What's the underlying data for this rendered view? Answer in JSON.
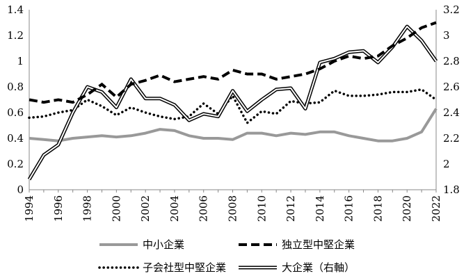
{
  "chart_data": {
    "type": "line",
    "x": [
      1994,
      1995,
      1996,
      1997,
      1998,
      1999,
      2000,
      2001,
      2002,
      2003,
      2004,
      2005,
      2006,
      2007,
      2008,
      2009,
      2010,
      2011,
      2012,
      2013,
      2014,
      2015,
      2016,
      2017,
      2018,
      2019,
      2020,
      2021,
      2022
    ],
    "x_tick_labels": [
      "1994",
      "1996",
      "1998",
      "2000",
      "2002",
      "2004",
      "2006",
      "2008",
      "2010",
      "2012",
      "2014",
      "2016",
      "2018",
      "2020",
      "2022"
    ],
    "y_left": {
      "range": [
        0,
        1.4
      ],
      "ticks": [
        "0",
        "0.2",
        "0.4",
        "0.6",
        "0.8",
        "1",
        "1.2",
        "1.4"
      ]
    },
    "y_right": {
      "range": [
        1.8,
        3.2
      ],
      "ticks": [
        "1.8",
        "2",
        "2.2",
        "2.4",
        "2.6",
        "2.8",
        "3",
        "3.2"
      ]
    },
    "series": [
      {
        "name": "中小企業",
        "axis": "left",
        "style": "gray-solid",
        "values": [
          0.4,
          0.39,
          0.38,
          0.4,
          0.41,
          0.42,
          0.41,
          0.42,
          0.44,
          0.47,
          0.46,
          0.42,
          0.4,
          0.4,
          0.39,
          0.44,
          0.44,
          0.42,
          0.44,
          0.43,
          0.45,
          0.45,
          0.42,
          0.4,
          0.38,
          0.38,
          0.4,
          0.45,
          0.63
        ]
      },
      {
        "name": "独立型中堅企業",
        "axis": "left",
        "style": "black-dashed",
        "values": [
          0.7,
          0.68,
          0.7,
          0.68,
          0.74,
          0.82,
          0.72,
          0.82,
          0.85,
          0.89,
          0.84,
          0.86,
          0.88,
          0.86,
          0.93,
          0.9,
          0.9,
          0.86,
          0.88,
          0.9,
          0.94,
          1.0,
          1.04,
          1.02,
          1.04,
          1.12,
          1.18,
          1.26,
          1.3
        ]
      },
      {
        "name": "子会社型中堅企業",
        "axis": "left",
        "style": "black-dotted",
        "values": [
          0.56,
          0.57,
          0.6,
          0.62,
          0.7,
          0.65,
          0.58,
          0.64,
          0.6,
          0.57,
          0.55,
          0.57,
          0.67,
          0.59,
          0.73,
          0.52,
          0.61,
          0.59,
          0.69,
          0.67,
          0.68,
          0.77,
          0.73,
          0.73,
          0.74,
          0.76,
          0.76,
          0.78,
          0.7
        ]
      },
      {
        "name": "大企業（右軸）",
        "axis": "right",
        "style": "double-line",
        "values": [
          1.88,
          2.07,
          2.15,
          2.4,
          2.6,
          2.56,
          2.44,
          2.66,
          2.51,
          2.51,
          2.46,
          2.34,
          2.39,
          2.37,
          2.57,
          2.41,
          2.5,
          2.58,
          2.59,
          2.43,
          2.79,
          2.82,
          2.87,
          2.88,
          2.79,
          2.91,
          3.07,
          2.96,
          2.8
        ]
      }
    ]
  }
}
